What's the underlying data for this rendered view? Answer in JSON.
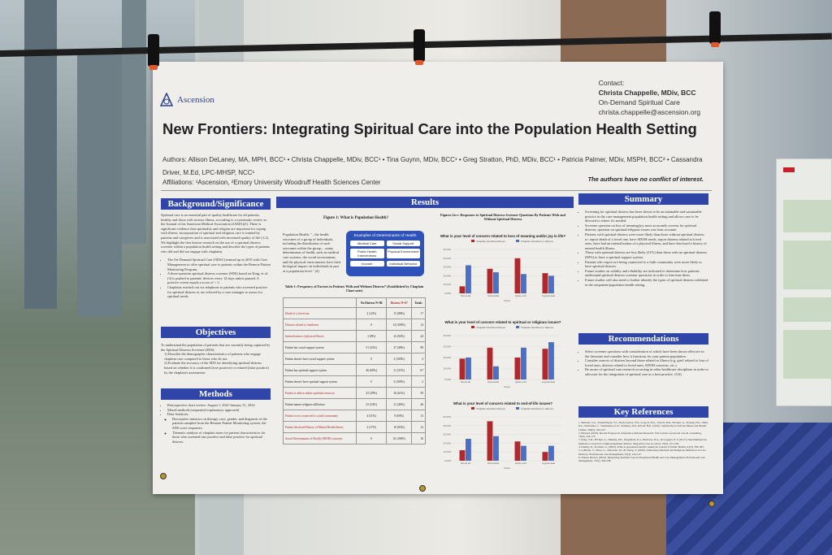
{
  "poster": {
    "logo": "Ascension",
    "contact": {
      "label": "Contact:",
      "name": "Christa Chappelle, MDiv, BCC",
      "dept": "On-Demand Spiritual Care",
      "email": "christa.chappelle@ascension.org"
    },
    "title": "New Frontiers: Integrating Spiritual Care into the Population Health Setting",
    "authors": "Authors: Allison DeLaney, MA, MPH, BCC¹ • Christa Chappelle, MDiv, BCC¹ • Tina Guynn, MDiv, BCC¹ • Greg Stratton, PhD, MDiv, BCC¹ • Patricia Palmer, MDiv, MSPH, BCC² • Cassandra Driver, M.Ed, LPC-MHSP, NCC¹",
    "affiliations": "Affiliations: ¹Ascension, ²Emory University Woodruff Health Sciences Center",
    "conflict": "The authors have no conflict of interest.",
    "sections": {
      "background": {
        "title": "Background/Significance",
        "text": "Spiritual care is an essential part of quality healthcare for all patients, healthy and those with serious illness, according to a systematic review in the Journal of the American Medical Association (JAMA)(1). There is significant evidence that spirituality and religion are important for coping with illness; incorporation of spiritual and religious care is wanted by patients and caregivers and is associated with increased quality of life (1,2). We highlight the first known research on the use of a spiritual distress screener within a population health setting and describe the types of patients who did and did not engage with chaplains.",
        "bullets": [
          "The On-Demand Spiritual Care (ODSC) teamed up in 2019 with Care Management to offer spiritual care to patients within the Remote Patient Monitoring Program.",
          "A three-question spiritual distress screener (SDS) based on King, et al.(3) is pushed to patients' devices every 14 days unless paused. A positive screen equals a score of > 2.",
          "Chaplains reached out via telephone to patients who screened positive for spiritual distress or are referred by a case manager to assess for spiritual needs."
        ]
      },
      "objectives": {
        "title": "Objectives",
        "text": "To understand the population of patients that are currently being captured by the Spiritual Distress Screener (SDS):",
        "items": [
          "1) Describe the demographic characteristics of patients who engage chaplain care compared to those who do not.",
          "2) Evaluate the accuracy of the SDS for identifying spiritual distress based on whether it is confirmed (true positive) or refuted (false positive) by the chaplain's assessment."
        ]
      },
      "methods": {
        "title": "Methods",
        "items": [
          "Retrospective chart review: August 1, 2021-January 31, 2022",
          "Mixed methods (sequential explanatory approach)",
          "Data Analyses:"
        ],
        "sub": [
          "Descriptive statistics on therapy, race, gender, and diagnosis of the patients sampled from the Remote Patient Monitoring system, the SDS score responses.",
          "Thematic analysis of chaplain notes for patient characteristics for those who screened true positive and false positive for spiritual distress."
        ]
      },
      "results": {
        "title": "Results",
        "figure1": "Figure 1: What is Population Health?",
        "pop_health": "Population Health: \"...the health outcomes of a group of individuals, including the distribution of such outcomes within the group.... many determinants of health, such as medical care systems, the social environment, and the physical environment, have their biological impact on individuals in part at a population level.\" (4)",
        "determinants": {
          "title": "Examples of Determinants of Health",
          "items": [
            "Medical Care",
            "Social Support",
            "Public Health Interventions",
            "Physical Environment",
            "Income",
            "Individual Behavior"
          ]
        },
        "table": {
          "title": "Table 1: Frequency of Factors in Patients With and Without Distress* (Established by Chaplain Chart note)",
          "headers": [
            "",
            "No Distress N=86",
            "Distress N=67",
            "Totals"
          ],
          "rows": [
            [
              "Death of a loved one",
              "2 (12%)",
              "15 (88%)",
              "17"
            ],
            [
              "Distress related to loneliness",
              "0",
              "14 (100%)",
              "14"
            ],
            [
              "Intensification of physical illness",
              "2 (8%)",
              "22 (92%)",
              "24"
            ],
            [
              "Patient has social support system",
              "51 (52%)",
              "47 (48%)",
              "98"
            ],
            [
              "Patient doesn't have social support system",
              "0",
              "4 (100%)",
              "4"
            ],
            [
              "Patient has spiritual support system",
              "46 (69%)",
              "21 (31%)",
              "67"
            ],
            [
              "Patient doesn't have spiritual support system",
              "0",
              "2 (100%)",
              "2"
            ],
            [
              "Patient is able to utilize spiritual resources",
              "23 (39%)",
              "36 (61%)",
              "59"
            ],
            [
              "Patient names religious affiliation",
              "25 (54%)",
              "21 (46%)",
              "46"
            ],
            [
              "Patient is not connected to a faith community",
              "4 (31%)",
              "9 (69%)",
              "13"
            ],
            [
              "Patient disclosed History of Mental Health illness",
              "2 (17%)",
              "10 (83%)",
              "12"
            ],
            [
              "Social Determinants of Health (SDOH) concerns",
              "0",
              "16 (100%)",
              "16"
            ]
          ]
        },
        "figure2": "Figures 2a-c: Responses to Spiritual Distress Screener Questions By Patients With and Without Spiritual Distress"
      },
      "summary": {
        "title": "Summary",
        "items": [
          "Screening for spiritual distress has been shown to be an attainable and sustainable practice in the case management population health setting and allows care to be directed to where it's needed.",
          "Screener question on loss of meaning/joy most accurately screens for spiritual distress; question on spiritual/religious issues was least accurate.",
          "Patients with spiritual distress were more likely than those without spiritual distress to: report death of a loved one, have SDOH needs, report distress related to loved ones, have had an intensification of a physical illness, and have disclosed a history of mental health illness.",
          "Those with spiritual distress are less likely (31%) than those with no spiritual distress (69%) to have a spiritual support system.",
          "Patients who report not being connected to a faith community were more likely to have spiritual distress.",
          "Future studies on validity and reliability are indicated to determine how patients understand spiritual distress screener questions in order to fine-tune them.",
          "Future studies will also need to further identify the types of spiritual distress exhibited in the outpatient/population health setting."
        ]
      },
      "recommendations": {
        "title": "Recommendations",
        "items": [
          "Select screener questions with consideration of which have been shown effective in the literature and consider how it functions for your patient population.",
          "Consider sources of distress beyond those related to illness (e.g. grief related to loss of loved ones, distress related to loved ones, SDOH concerns, etc.).",
          "Be aware of spiritual care research occurring in other healthcare disciplines in order to advocate for the integration of spiritual care as a best practice. (5,6)"
        ]
      },
      "references": {
        "title": "Key References",
        "items": [
          "1. Balboni, T.A., VanderWeele, T.J., Doan-Soares, S.D., Long, K.N.G., Ferrell, B.R., Fitchett, G., Koenig, H.G., Bain, P.A., Puchalski, C., Steinhauser, K.E., Sulmasy, D.P., & Koh, H.K. (2022). Spirituality in Serious Illness and Health. JAMA, 328(2), 184-197.",
          "2. Haward (2019). Recent Progress in Chaplaincy-Related Research. The Journal of pastoral care & counseling, 73(3), 164-173.",
          "3. King, S.D., Fitchett, G., Murphy, P.E., Pargament, K.I., Harrison, D.A., & Loggers, E.T. (2017). Determining best methods to screen for religious/spiritual distress. Supportive care in cancer, 25(2), 471-479.",
          "4. Kindig, D., Stoddart, G. (2003). What is population health? American Journal of Public Health, 93(3), 380-383.",
          "5. LeBaron, V., Moss, L., Setterudo, M., & Young, T. (2020). Addressing Spiritual and Religious Influences in Care Delivery. Professional case management, 25(3), 142-147.",
          "6. Nurses Review (2022). Integrating Spiritual Care in Population Health and Care Management. Professional case management, 27(5), 229-238."
        ]
      }
    }
  },
  "chart_data": [
    {
      "type": "bar",
      "title": "What is your level of concern related to loss of meaning and/or joy in life?",
      "categories": [
        "Not at all",
        "Somewhat",
        "Quite a bit",
        "A great deal"
      ],
      "series": [
        {
          "name": "Chaplain identified distress",
          "values": [
            8,
            28,
            40,
            23
          ]
        },
        {
          "name": "Chaplain identified no distress",
          "values": [
            32,
            24,
            22,
            20
          ]
        }
      ],
      "ylim": [
        0,
        50
      ],
      "yticks": [
        "0.00%",
        "10.00%",
        "20.00%",
        "30.00%",
        "40.00%",
        "50.00%"
      ],
      "xlabel": "Series",
      "legend": "top"
    },
    {
      "type": "bar",
      "title": "What is your level of concern related to spiritual or religious issues?",
      "categories": [
        "Not at all",
        "Somewhat",
        "Quite a bit",
        "A great deal"
      ],
      "series": [
        {
          "name": "Chaplain identified distress",
          "values": [
            19,
            29,
            20,
            28
          ]
        },
        {
          "name": "Chaplain identified no distress",
          "values": [
            20,
            12,
            29,
            34
          ]
        }
      ],
      "ylim": [
        0,
        40
      ],
      "yticks": [
        "0.00%",
        "10.00%",
        "20.00%",
        "30.00%",
        "40.00%"
      ],
      "xlabel": "Series",
      "legend": "top"
    },
    {
      "type": "bar",
      "title": "What is your level of concern related to end-of-life issues?",
      "categories": [
        "Not at all",
        "Somewhat",
        "Quite a bit",
        "A great deal"
      ],
      "series": [
        {
          "name": "Chaplain identified distress",
          "values": [
            12,
            45,
            22,
            10
          ]
        },
        {
          "name": "Chaplain identified no distress",
          "values": [
            25,
            28,
            17,
            17
          ]
        }
      ],
      "ylim": [
        0,
        50
      ],
      "yticks": [
        "0.00%",
        "10.00%",
        "20.00%",
        "30.00%",
        "40.00%",
        "50.00%"
      ],
      "xlabel": "Series",
      "legend": "top"
    }
  ],
  "colors": {
    "header_blue": "#2f46a8",
    "distress_red": "#b1282c",
    "no_distress_blue": "#4a6fc4"
  }
}
